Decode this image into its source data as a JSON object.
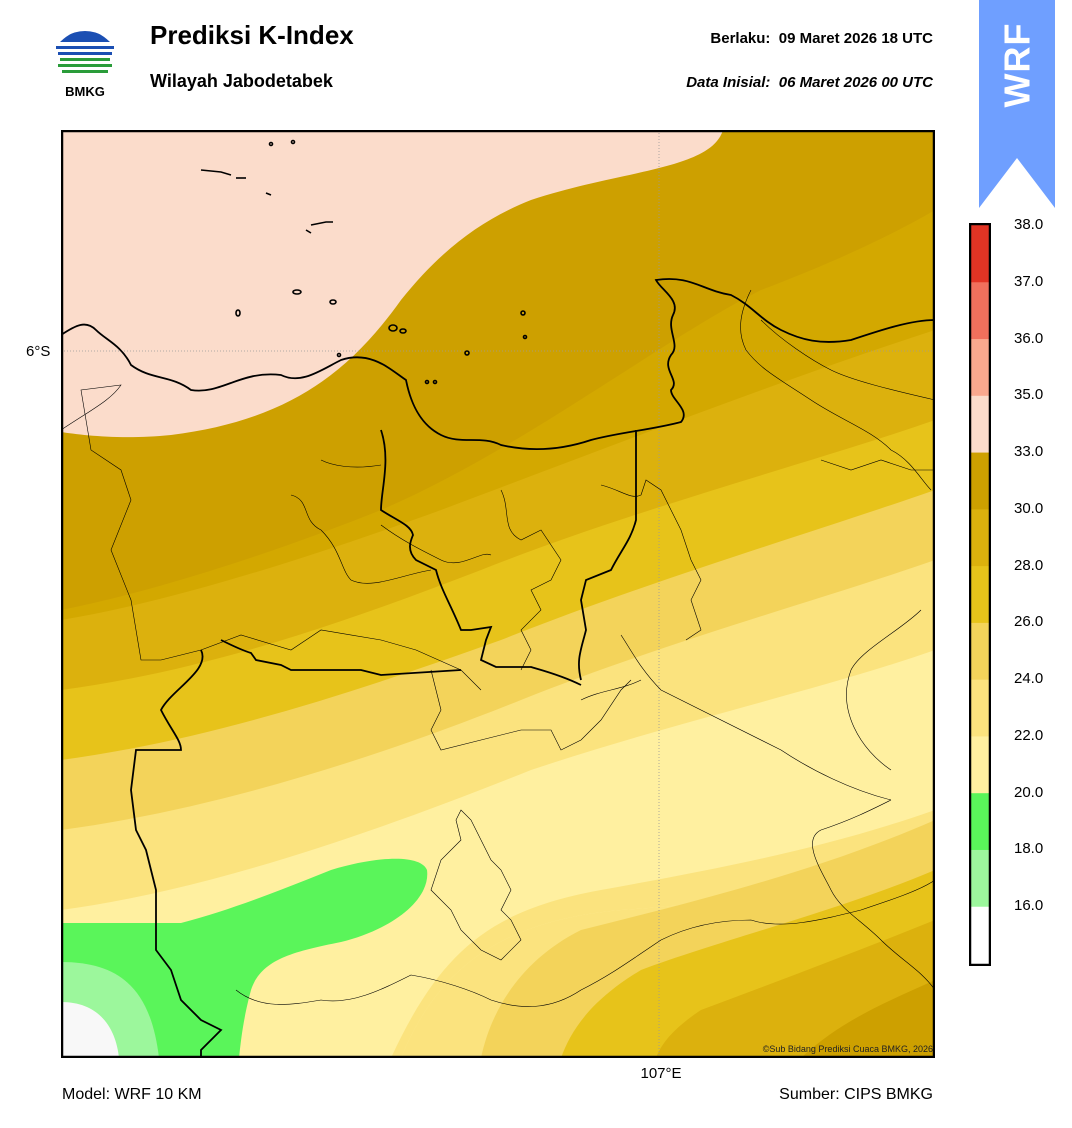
{
  "header": {
    "title": "Prediksi K-Index",
    "subtitle": "Wilayah Jabodetabek",
    "valid_label": "Berlaku:  09 Maret 2026 18 UTC",
    "init_label": "Data Inisial:  06 Maret 2026 00 UTC",
    "logo_text": "BMKG"
  },
  "banner": {
    "text": "WRF",
    "color": "#6f9fff"
  },
  "map": {
    "lat_label": "6°S",
    "lon_label": "107°E",
    "credit": "©Sub Bidang Prediksi Cuaca BMKG, 2026"
  },
  "footer": {
    "model": "Model: WRF 10 KM",
    "source": "Sumber: CIPS BMKG"
  },
  "colorbar": {
    "ticks": [
      "16.0",
      "18.0",
      "20.0",
      "22.0",
      "24.0",
      "26.0",
      "28.0",
      "30.0",
      "33.0",
      "35.0",
      "36.0",
      "37.0",
      "38.0"
    ],
    "colors": [
      "#ffffff",
      "#9cf79c",
      "#5af55a",
      "#fff0a0",
      "#fbe37e",
      "#f3d35a",
      "#e7c31a",
      "#dcb10d",
      "#cda000",
      "#fbdccb",
      "#f9a88e",
      "#f0705c",
      "#e23424"
    ]
  }
}
